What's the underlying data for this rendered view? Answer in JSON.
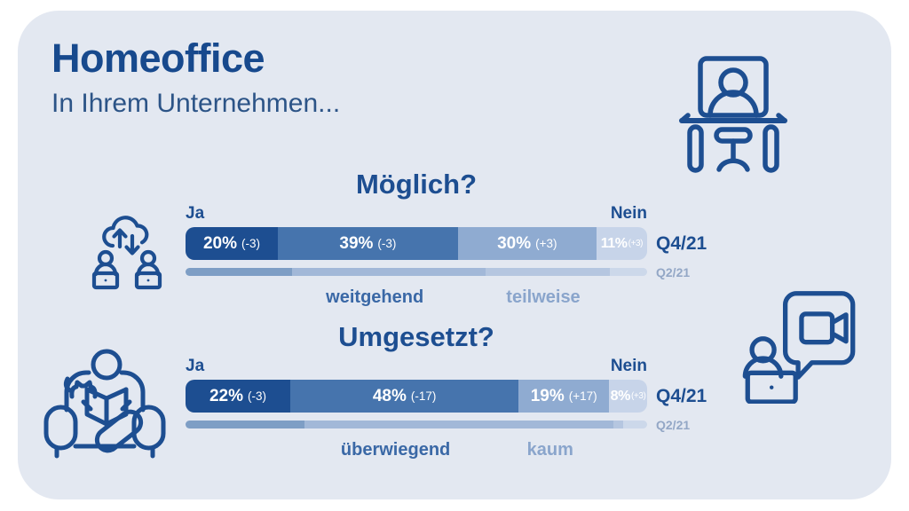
{
  "header": {
    "title": "Homeoffice",
    "subtitle": "In Ihrem Unternehmen..."
  },
  "colors": {
    "card_bg": "#e3e8f1",
    "accent_dark": "#1d4e91",
    "title": "#17498d",
    "subtitle": "#2c5487",
    "muted_row_label": "#93a7c6",
    "sub_label_dark": "#3a68a6",
    "sub_label_light": "#8aa5cc",
    "q4_segments": [
      "#1d4e91",
      "#4674ad",
      "#8fabd1",
      "#c7d4e9"
    ],
    "q2_segments": [
      "#7e9ec5",
      "#a2b8d8",
      "#b5c6e0",
      "#ccd8ea"
    ]
  },
  "icons": {
    "desk": "desk-workstation-icon",
    "cloud": "cloud-sync-people-icon",
    "chair": "armchair-reading-icon",
    "video": "video-call-icon"
  },
  "chart_data": [
    {
      "type": "bar",
      "subtype": "stacked-horizontal",
      "title": "Möglich?",
      "left_label": "Ja",
      "right_label": "Nein",
      "rows": [
        "Q4/21",
        "Q2/21"
      ],
      "segments": [
        {
          "name": "Ja",
          "q4": 20,
          "delta": -3,
          "q2": 23,
          "value_label": "20%",
          "delta_label": "(-3)"
        },
        {
          "name": "weitgehend",
          "q4": 39,
          "delta": -3,
          "q2": 42,
          "value_label": "39%",
          "delta_label": "(-3)"
        },
        {
          "name": "teilweise",
          "q4": 30,
          "delta": 3,
          "q2": 27,
          "value_label": "30%",
          "delta_label": "(+3)"
        },
        {
          "name": "Nein",
          "q4": 11,
          "delta": 3,
          "q2": 8,
          "value_label": "11%",
          "delta_label": "(+3)"
        }
      ]
    },
    {
      "type": "bar",
      "subtype": "stacked-horizontal",
      "title": "Umgesetzt?",
      "left_label": "Ja",
      "right_label": "Nein",
      "rows": [
        "Q4/21",
        "Q2/21"
      ],
      "segments": [
        {
          "name": "Ja",
          "q4": 22,
          "delta": -3,
          "q2": 25,
          "value_label": "22%",
          "delta_label": "(-3)"
        },
        {
          "name": "überwiegend",
          "q4": 48,
          "delta": -17,
          "q2": 65,
          "value_label": "48%",
          "delta_label": "(-17)"
        },
        {
          "name": "kaum",
          "q4": 19,
          "delta": 17,
          "q2": 2,
          "value_label": "19%",
          "delta_label": "(+17)"
        },
        {
          "name": "Nein",
          "q4": 8,
          "delta": 3,
          "q2": 5,
          "value_label": "8%",
          "delta_label": "(+3)"
        }
      ]
    }
  ]
}
